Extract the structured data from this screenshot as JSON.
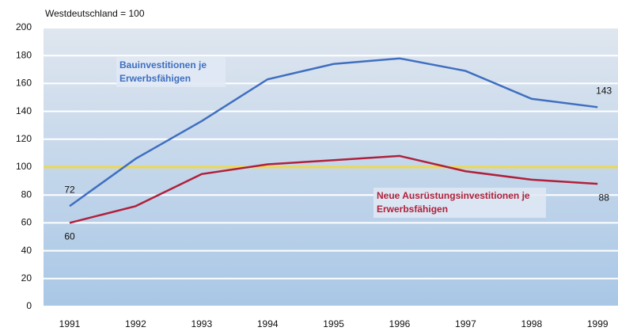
{
  "chart_data": {
    "type": "line",
    "subtitle": "Westdeutschland = 100",
    "categories": [
      "1991",
      "1992",
      "1993",
      "1994",
      "1995",
      "1996",
      "1997",
      "1998",
      "1999"
    ],
    "series": [
      {
        "name": "Bauinvestitionen je Erwerbsfähigen",
        "color": "#3f6fc0",
        "values": [
          72,
          106,
          133,
          163,
          174,
          178,
          169,
          149,
          143
        ],
        "value_labels": [
          "72",
          null,
          null,
          null,
          null,
          null,
          null,
          null,
          "143"
        ]
      },
      {
        "name": "Neue Ausrüstungsinvestitionen je Erwerbsfähigen",
        "color": "#b0203a",
        "values": [
          60,
          72,
          95,
          102,
          105,
          108,
          97,
          91,
          88
        ],
        "value_labels": [
          "60",
          null,
          null,
          null,
          null,
          null,
          null,
          null,
          "88"
        ]
      }
    ],
    "reference_line": {
      "value": 100,
      "color": "#f0d84a"
    },
    "ylim": [
      0,
      200
    ],
    "yticks": [
      0,
      20,
      40,
      60,
      80,
      100,
      120,
      140,
      160,
      180,
      200
    ],
    "grid": true
  }
}
